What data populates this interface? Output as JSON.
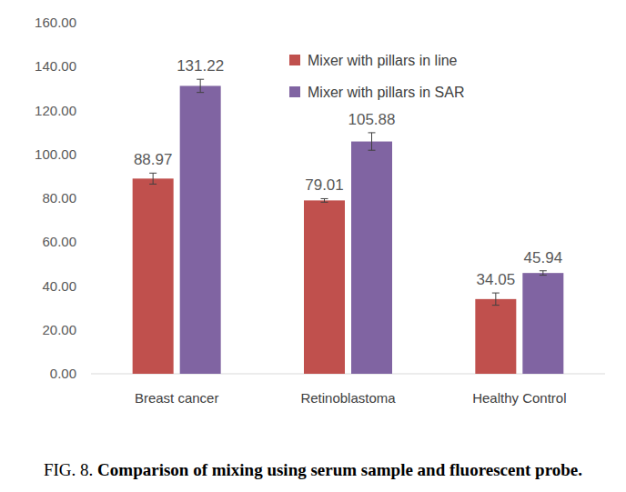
{
  "chart_data": {
    "type": "bar",
    "title": "FIG. 8.",
    "subtitle": "Comparison of mixing using serum sample and fluorescent probe.",
    "categories": [
      "Breast cancer",
      "Retinoblastoma",
      "Healthy Control"
    ],
    "series": [
      {
        "name": "Mixer with pillars in line",
        "color": "#c0504d",
        "values": [
          88.97,
          79.01,
          34.05
        ],
        "errors": [
          2.5,
          0.8,
          2.8
        ]
      },
      {
        "name": "Mixer with pillars in SAR",
        "color": "#8064a2",
        "values": [
          131.22,
          105.88,
          45.94
        ],
        "errors": [
          3.0,
          4.0,
          1.0
        ]
      }
    ],
    "ylim": [
      0,
      160
    ],
    "yticks": [
      {
        "value": 0,
        "label": "0.00"
      },
      {
        "value": 20,
        "label": "20.00"
      },
      {
        "value": 40,
        "label": "40.00"
      },
      {
        "value": 60,
        "label": "60.00"
      },
      {
        "value": 80,
        "label": "80.00"
      },
      {
        "value": 100,
        "label": "100.00"
      },
      {
        "value": 120,
        "label": "120.00"
      },
      {
        "value": 140,
        "label": "140.00"
      },
      {
        "value": 160,
        "label": "160.00"
      }
    ],
    "grid": false,
    "legend": "top",
    "data_labels": true
  }
}
